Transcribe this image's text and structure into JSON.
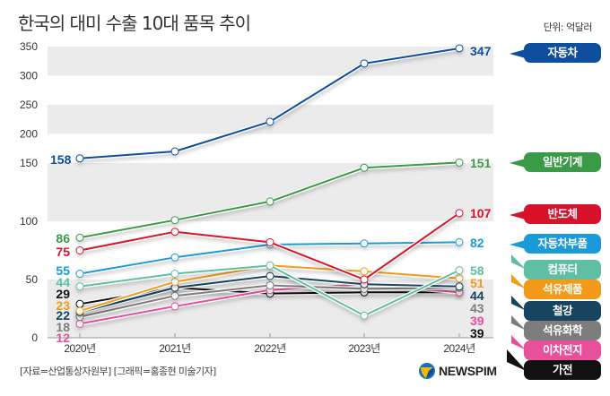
{
  "header": {
    "title": "한국의 대미 수출 10대 품목 추이",
    "unit": "단위: 억달러"
  },
  "footer": {
    "source": "[자료=산업통상자원부] [그래픽=홍종현 미술기자]",
    "brand": "NEWSPIM"
  },
  "chart_data": {
    "type": "line",
    "title": "한국의 대미 수출 10대 품목 추이",
    "unit": "억달러",
    "xlabel": "",
    "ylabel": "",
    "x": [
      "2020년",
      "2021년",
      "2022년",
      "2023년",
      "2024년"
    ],
    "y_ticks": [
      0,
      50,
      100,
      150,
      200,
      250,
      300,
      350
    ],
    "y_axis_note": "broken scale: 0-150 expanded, 150-350 compressed",
    "ylim": [
      0,
      350
    ],
    "grid": "alternating bands",
    "legend": "right (pointer tags)",
    "series": [
      {
        "name": "자동차",
        "color": "#0d4f9e",
        "values": [
          158,
          170,
          221,
          321,
          347
        ],
        "start_label": "158",
        "end_label": "347"
      },
      {
        "name": "일반기계",
        "color": "#3a9a47",
        "values": [
          86,
          101,
          117,
          146,
          151
        ],
        "start_label": "86",
        "end_label": "151"
      },
      {
        "name": "반도체",
        "color": "#d7122a",
        "values": [
          75,
          91,
          82,
          50,
          107
        ],
        "start_label": "75",
        "end_label": "107"
      },
      {
        "name": "자동차부품",
        "color": "#1a9ad9",
        "values": [
          55,
          69,
          80,
          81,
          82
        ],
        "start_label": "55",
        "end_label": "82"
      },
      {
        "name": "컴퓨터",
        "color": "#5fbfa3",
        "values": [
          44,
          55,
          62,
          19,
          58
        ],
        "start_label": "44",
        "end_label": "58"
      },
      {
        "name": "석유제품",
        "color": "#f39a1b",
        "values": [
          23,
          48,
          62,
          57,
          51
        ],
        "start_label": "23",
        "end_label": "51"
      },
      {
        "name": "철강",
        "color": "#17445e",
        "values": [
          22,
          43,
          53,
          46,
          44
        ],
        "start_label": "22",
        "end_label": "44"
      },
      {
        "name": "석유화학",
        "color": "#7d7d7d",
        "values": [
          18,
          36,
          45,
          42,
          43
        ],
        "start_label": "18",
        "end_label": "43"
      },
      {
        "name": "이차전지",
        "color": "#e7509a",
        "values": [
          12,
          27,
          41,
          46,
          39
        ],
        "start_label": "12",
        "end_label": "39"
      },
      {
        "name": "가전",
        "color": "#111111",
        "values": [
          29,
          43,
          38,
          39,
          39
        ],
        "start_label": "29",
        "end_label": "39"
      }
    ]
  }
}
